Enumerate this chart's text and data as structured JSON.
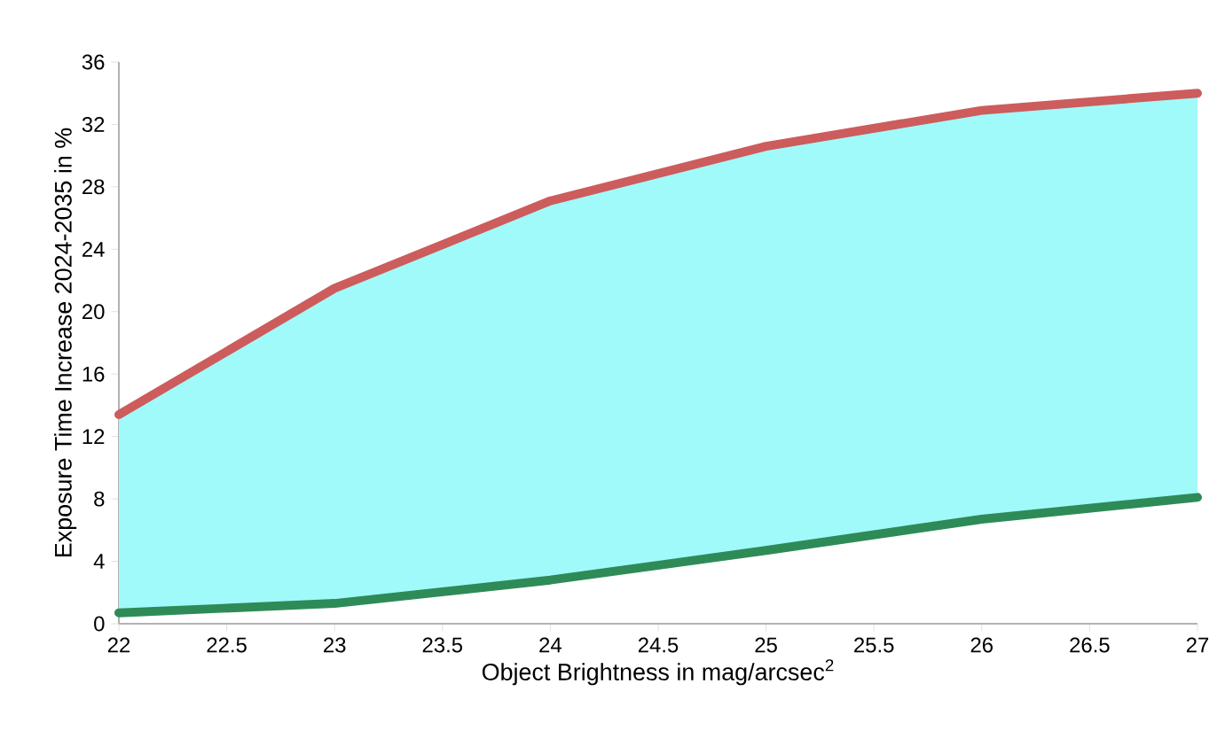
{
  "chart_data": {
    "type": "line",
    "xlabel": "Object Brightness in mag/arcsec$^{2}$",
    "ylabel": "Exposure Time Increase 2024-2035 in %",
    "x": [
      22,
      23,
      24,
      25,
      26,
      27
    ],
    "series": [
      {
        "color": "#2e8b57",
        "values": [
          0.7,
          1.3,
          2.8,
          4.7,
          6.7,
          8.1
        ]
      },
      {
        "color": "#cd5c5c",
        "values": [
          13.4,
          21.5,
          27.1,
          30.6,
          32.9,
          34.0
        ],
        "lower": [
          0.7,
          1.3,
          2.8,
          4.7,
          6.7,
          8.1
        ],
        "upper": [
          13.4,
          21.5,
          27.1,
          30.6,
          32.9,
          34.0
        ]
      }
    ],
    "xlim": [
      22,
      27
    ],
    "xticks": [
      22,
      22.5,
      23,
      23.5,
      24,
      24.5,
      25,
      25.5,
      26,
      26.5,
      27
    ],
    "ylim": [
      0,
      36
    ],
    "yticks": [
      0,
      4,
      8,
      12,
      16,
      20,
      24,
      28,
      32,
      36
    ],
    "grid": false,
    "marker": "none",
    "line_style": "solid"
  }
}
